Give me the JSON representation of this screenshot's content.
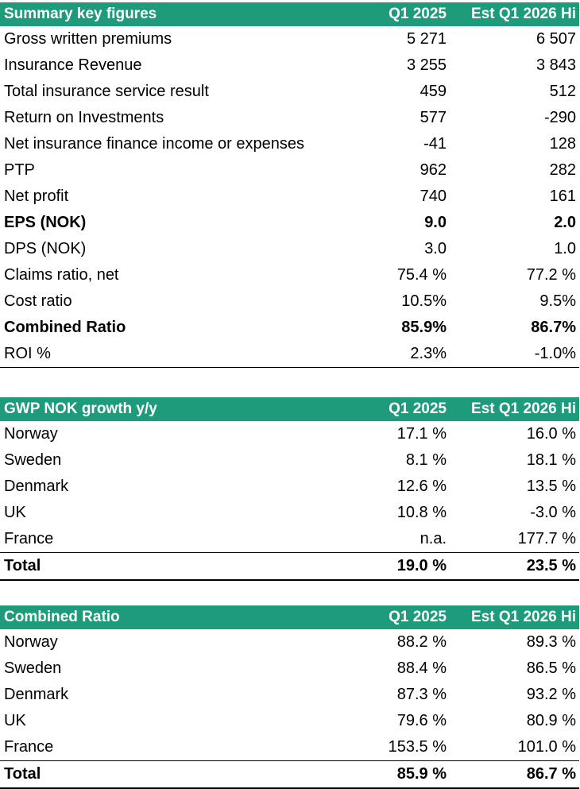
{
  "summary": {
    "header": {
      "title": "Summary key figures",
      "col1": "Q1 2025",
      "col2": "Est Q1 2026 Hi"
    },
    "rows": [
      {
        "label": "Gross written premiums",
        "q1": "5 271",
        "est": "6 507",
        "bold": false
      },
      {
        "label": "Insurance Revenue",
        "q1": "3 255",
        "est": "3 843",
        "bold": false
      },
      {
        "label": "Total insurance service result",
        "q1": "459",
        "est": "512",
        "bold": false
      },
      {
        "label": "Return on Investments",
        "q1": "577",
        "est": "-290",
        "bold": false
      },
      {
        "label": "Net insurance finance income or expenses",
        "q1": "-41",
        "est": "128",
        "bold": false
      },
      {
        "label": "PTP",
        "q1": "962",
        "est": "282",
        "bold": false
      },
      {
        "label": "Net profit",
        "q1": "740",
        "est": "161",
        "bold": false
      },
      {
        "label": "EPS (NOK)",
        "q1": "9.0",
        "est": "2.0",
        "bold": true
      },
      {
        "label": "DPS (NOK)",
        "q1": "3.0",
        "est": "1.0",
        "bold": false
      },
      {
        "label": "Claims ratio, net",
        "q1": "75.4 %",
        "est": "77.2 %",
        "bold": false
      },
      {
        "label": "Cost ratio",
        "q1": "10.5%",
        "est": "9.5%",
        "bold": false
      },
      {
        "label": "Combined Ratio",
        "q1": "85.9%",
        "est": "86.7%",
        "bold": true
      },
      {
        "label": "ROI %",
        "q1": "2.3%",
        "est": "-1.0%",
        "bold": false
      }
    ]
  },
  "gwp": {
    "header": {
      "title": "GWP NOK growth y/y",
      "col1": "Q1 2025",
      "col2": "Est Q1 2026 Hi"
    },
    "rows": [
      {
        "label": "Norway",
        "q1": "17.1 %",
        "est": "16.0 %"
      },
      {
        "label": "Sweden",
        "q1": "8.1 %",
        "est": "18.1 %"
      },
      {
        "label": "Denmark",
        "q1": "12.6 %",
        "est": "13.5 %"
      },
      {
        "label": "UK",
        "q1": "10.8 %",
        "est": "-3.0 %"
      },
      {
        "label": "France",
        "q1": "n.a.",
        "est": "177.7 %"
      }
    ],
    "total": {
      "label": "Total",
      "q1": "19.0 %",
      "est": "23.5 %"
    }
  },
  "combined": {
    "header": {
      "title": "Combined Ratio",
      "col1": "Q1 2025",
      "col2": "Est Q1 2026 Hi"
    },
    "rows": [
      {
        "label": "Norway",
        "q1": "88.2 %",
        "est": "89.3 %"
      },
      {
        "label": "Sweden",
        "q1": "88.4 %",
        "est": "86.5 %"
      },
      {
        "label": "Denmark",
        "q1": "87.3 %",
        "est": "93.2 %"
      },
      {
        "label": "UK",
        "q1": "79.6 %",
        "est": "80.9 %"
      },
      {
        "label": "France",
        "q1": "153.5 %",
        "est": "101.0 %"
      }
    ],
    "total": {
      "label": "Total",
      "q1": "85.9 %",
      "est": "86.7 %"
    }
  }
}
